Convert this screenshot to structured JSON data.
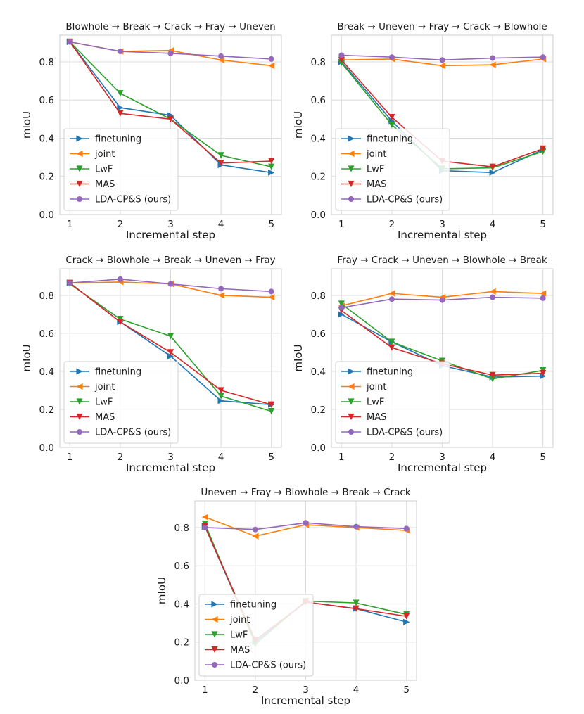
{
  "common": {
    "xlabel": "Incremental step",
    "ylabel": "mIoU",
    "x": [
      1,
      2,
      3,
      4,
      5
    ],
    "yticks": [
      "0.0",
      "0.2",
      "0.4",
      "0.6",
      "0.8"
    ],
    "ylim": [
      0,
      0.94
    ],
    "legend": [
      "finetuning",
      "joint",
      "LwF",
      "MAS",
      "LDA-CP&S (ours)"
    ],
    "colors": {
      "finetuning": "#1f77b4",
      "joint": "#ff7f0e",
      "LwF": "#2ca02c",
      "MAS": "#d62728",
      "LDA-CP&S (ours)": "#9467bd"
    }
  },
  "chart_data": [
    {
      "type": "line",
      "title": "Blowhole → Break → Crack → Fray → Uneven",
      "xlabel": "Incremental step",
      "ylabel": "mIoU",
      "x": [
        1,
        2,
        3,
        4,
        5
      ],
      "series": [
        {
          "name": "finetuning",
          "values": [
            0.905,
            0.56,
            0.52,
            0.26,
            0.22
          ]
        },
        {
          "name": "joint",
          "values": [
            0.905,
            0.855,
            0.86,
            0.81,
            0.78
          ]
        },
        {
          "name": "LwF",
          "values": [
            0.905,
            0.635,
            0.5,
            0.31,
            0.25
          ]
        },
        {
          "name": "MAS",
          "values": [
            0.905,
            0.53,
            0.5,
            0.27,
            0.28
          ]
        },
        {
          "name": "LDA-CP&S (ours)",
          "values": [
            0.905,
            0.855,
            0.845,
            0.83,
            0.815
          ]
        }
      ]
    },
    {
      "type": "line",
      "title": "Break → Uneven → Fray → Crack → Blowhole",
      "xlabel": "Incremental step",
      "ylabel": "mIoU",
      "x": [
        1,
        2,
        3,
        4,
        5
      ],
      "series": [
        {
          "name": "finetuning",
          "values": [
            0.8,
            0.49,
            0.23,
            0.22,
            0.34
          ]
        },
        {
          "name": "joint",
          "values": [
            0.81,
            0.815,
            0.78,
            0.785,
            0.815
          ]
        },
        {
          "name": "LwF",
          "values": [
            0.795,
            0.47,
            0.24,
            0.245,
            0.33
          ]
        },
        {
          "name": "MAS",
          "values": [
            0.81,
            0.51,
            0.28,
            0.25,
            0.345
          ]
        },
        {
          "name": "LDA-CP&S (ours)",
          "values": [
            0.835,
            0.825,
            0.81,
            0.82,
            0.825
          ]
        }
      ]
    },
    {
      "type": "line",
      "title": "Crack → Blowhole → Break → Uneven → Fray",
      "xlabel": "Incremental step",
      "ylabel": "mIoU",
      "x": [
        1,
        2,
        3,
        4,
        5
      ],
      "series": [
        {
          "name": "finetuning",
          "values": [
            0.865,
            0.66,
            0.48,
            0.245,
            0.225
          ]
        },
        {
          "name": "joint",
          "values": [
            0.865,
            0.87,
            0.86,
            0.8,
            0.79
          ]
        },
        {
          "name": "LwF",
          "values": [
            0.86,
            0.675,
            0.585,
            0.27,
            0.19
          ]
        },
        {
          "name": "MAS",
          "values": [
            0.865,
            0.66,
            0.5,
            0.3,
            0.225
          ]
        },
        {
          "name": "LDA-CP&S (ours)",
          "values": [
            0.865,
            0.885,
            0.86,
            0.835,
            0.82
          ]
        }
      ]
    },
    {
      "type": "line",
      "title": "Fray → Crack → Uneven → Blowhole → Break",
      "xlabel": "Incremental step",
      "ylabel": "mIoU",
      "x": [
        1,
        2,
        3,
        4,
        5
      ],
      "series": [
        {
          "name": "finetuning",
          "values": [
            0.7,
            0.555,
            0.43,
            0.37,
            0.375
          ]
        },
        {
          "name": "joint",
          "values": [
            0.745,
            0.81,
            0.79,
            0.82,
            0.81
          ]
        },
        {
          "name": "LwF",
          "values": [
            0.755,
            0.555,
            0.455,
            0.36,
            0.405
          ]
        },
        {
          "name": "MAS",
          "values": [
            0.72,
            0.525,
            0.44,
            0.38,
            0.39
          ]
        },
        {
          "name": "LDA-CP&S (ours)",
          "values": [
            0.735,
            0.78,
            0.775,
            0.79,
            0.785
          ]
        }
      ]
    },
    {
      "type": "line",
      "title": "Uneven → Fray → Blowhole → Break → Crack",
      "xlabel": "Incremental step",
      "ylabel": "mIoU",
      "x": [
        1,
        2,
        3,
        4,
        5
      ],
      "series": [
        {
          "name": "finetuning",
          "values": [
            0.805,
            0.2,
            0.41,
            0.375,
            0.305
          ]
        },
        {
          "name": "joint",
          "values": [
            0.855,
            0.755,
            0.815,
            0.8,
            0.785
          ]
        },
        {
          "name": "LwF",
          "values": [
            0.82,
            0.19,
            0.415,
            0.405,
            0.345
          ]
        },
        {
          "name": "MAS",
          "values": [
            0.805,
            0.21,
            0.41,
            0.375,
            0.335
          ]
        },
        {
          "name": "LDA-CP&S (ours)",
          "values": [
            0.8,
            0.79,
            0.825,
            0.805,
            0.795
          ]
        }
      ]
    }
  ]
}
